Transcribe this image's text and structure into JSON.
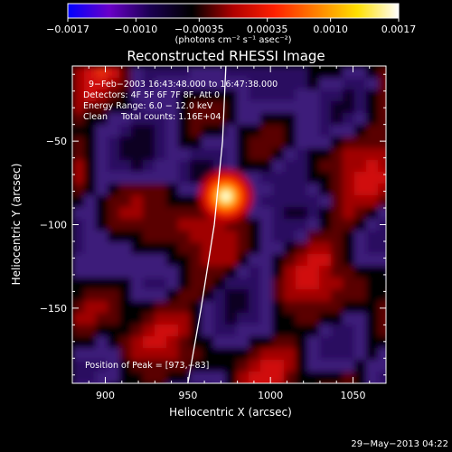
{
  "chart_data": {
    "type": "heatmap",
    "title": "Reconstructed RHESSI Image",
    "xlabel": "Heliocentric X (arcsec)",
    "ylabel": "Heliocentric Y (arcsec)",
    "xlim": [
      880,
      1070
    ],
    "ylim": [
      -195,
      -5
    ],
    "xticks": [
      900,
      950,
      1000,
      1050
    ],
    "xtick_labels": [
      "900",
      "950",
      "1000",
      "1050"
    ],
    "yticks": [
      -50,
      -100,
      -150
    ],
    "ytick_labels": [
      "−50",
      "−100",
      "−150"
    ],
    "colorbar": {
      "range": [
        -0.0017,
        0.0017
      ],
      "ticks": [
        -0.0017,
        -0.001,
        -0.00035,
        0.00035,
        0.001,
        0.0017
      ],
      "tick_labels": [
        "−0.0017",
        "−0.0010",
        "−0.00035",
        "0.00035",
        "0.0010",
        "0.0017"
      ],
      "unit_label": "(photons cm⁻² s⁻¹ asec⁻²)",
      "colormap": [
        "#0000ff",
        "#6a00c8",
        "#1a0050",
        "#000000",
        "#b00000",
        "#ff2000",
        "#ff8000",
        "#ffe000",
        "#ffffff"
      ]
    },
    "info_lines": [
      "9−Feb−2003 16:43:48.000 to 16:47:38.000",
      "Detectors: 4F 5F 6F 7F 8F, Att 0",
      "Energy Range: 6.0 − 12.0 keV",
      "Clean     Total counts: 1.16E+04"
    ],
    "peak": {
      "x": 973,
      "y": -83
    },
    "peak_label": "Position of Peak = [973,−83]",
    "limb_curve": [
      [
        973,
        -5
      ],
      [
        971,
        -50
      ],
      [
        966,
        -100
      ],
      [
        958,
        -150
      ],
      [
        950,
        -195
      ]
    ],
    "timestamp": "29−May−2013 04:22"
  }
}
